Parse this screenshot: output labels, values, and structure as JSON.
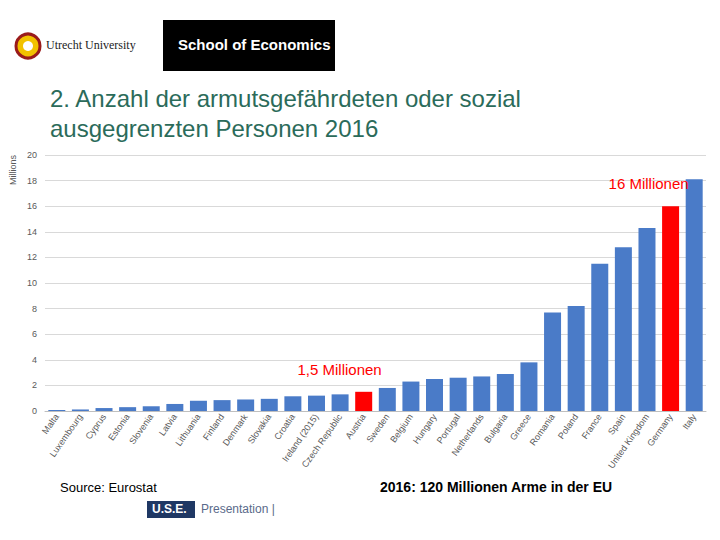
{
  "chart_data": {
    "type": "bar",
    "title": "2. Anzahl der armutsgefährdeten oder sozial ausgegrenzten Personen 2016",
    "y_label": "Millions",
    "categories": [
      "Malta",
      "Luxembourg",
      "Cyprus",
      "Estonia",
      "Slovenia",
      "Latvia",
      "Lithuania",
      "Finland",
      "Denmark",
      "Slovakia",
      "Croatia",
      "Ireland (2015)",
      "Czech Republic",
      "Austria",
      "Sweden",
      "Belgium",
      "Hungary",
      "Portugal",
      "Netherlands",
      "Bulgaria",
      "Greece",
      "Romania",
      "Poland",
      "France",
      "Spain",
      "United Kingdom",
      "Germany",
      "Italy"
    ],
    "values": [
      0.08,
      0.12,
      0.23,
      0.3,
      0.37,
      0.55,
      0.8,
      0.85,
      0.9,
      0.95,
      1.15,
      1.2,
      1.3,
      1.5,
      1.8,
      2.3,
      2.5,
      2.6,
      2.7,
      2.9,
      3.8,
      7.7,
      8.2,
      11.5,
      12.8,
      14.3,
      16,
      18.1
    ],
    "colors": [
      "#4a7bc8",
      "#4a7bc8",
      "#4a7bc8",
      "#4a7bc8",
      "#4a7bc8",
      "#4a7bc8",
      "#4a7bc8",
      "#4a7bc8",
      "#4a7bc8",
      "#4a7bc8",
      "#4a7bc8",
      "#4a7bc8",
      "#4a7bc8",
      "#ff0000",
      "#4a7bc8",
      "#4a7bc8",
      "#4a7bc8",
      "#4a7bc8",
      "#4a7bc8",
      "#4a7bc8",
      "#4a7bc8",
      "#4a7bc8",
      "#4a7bc8",
      "#4a7bc8",
      "#4a7bc8",
      "#4a7bc8",
      "#ff0000",
      "#4a7bc8"
    ],
    "ylim": [
      0,
      20
    ],
    "yticks": [
      0,
      2,
      4,
      6,
      8,
      10,
      12,
      14,
      16,
      18,
      20
    ],
    "grid": true,
    "data_labels": false,
    "annotations": [
      {
        "category": "Austria",
        "text": "1,5 Millionen",
        "color": "#ff0000"
      },
      {
        "category": "Germany",
        "text": "16 Millionen",
        "color": "#ff0000"
      }
    ]
  },
  "header": {
    "university": "Utrecht University",
    "school": "School of Economics"
  },
  "footer": {
    "source": "Source: Eurostat",
    "summary": [
      {
        "text": "2016: ",
        "color": "#000000"
      },
      {
        "text": "120 Millionen",
        "color": "#ff0000"
      },
      {
        "text": " Arme in der EU",
        "color": "#000000"
      }
    ],
    "badge": "U.S.E.",
    "presentation": "Presentation |"
  }
}
